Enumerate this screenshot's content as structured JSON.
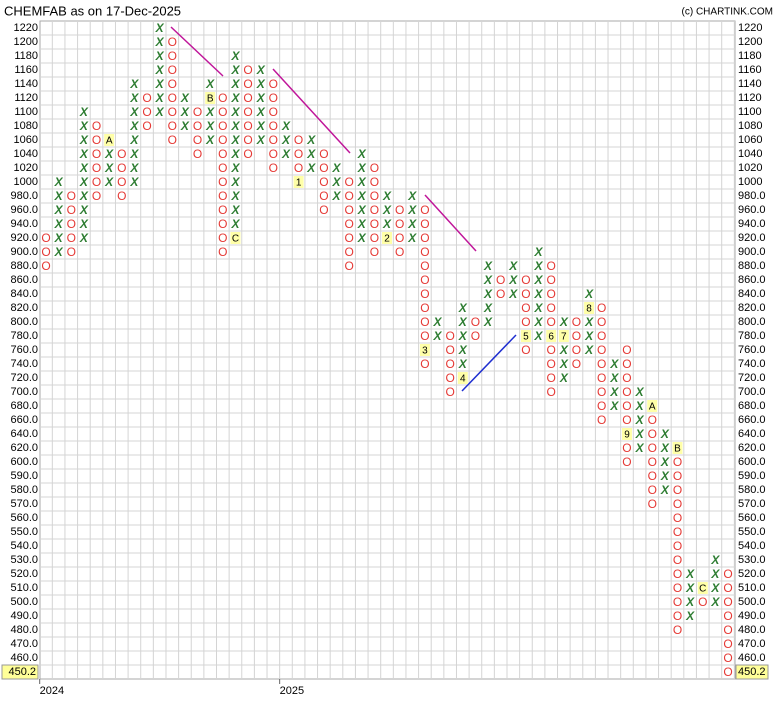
{
  "chart_data": {
    "type": "pointfigure",
    "title": "CHEMFAB as on 17-Dec-2025",
    "credit": "(c) CHARTINK.COM",
    "levels": [
      1220,
      1200,
      1180,
      1160,
      1140,
      1120,
      1100,
      1080,
      1060,
      1040,
      1020,
      1000,
      {
        "value": 980,
        "label": "980.0"
      },
      {
        "value": 960,
        "label": "960.0"
      },
      {
        "value": 940,
        "label": "940.0"
      },
      {
        "value": 920,
        "label": "920.0"
      },
      {
        "value": 900,
        "label": "900.0"
      },
      {
        "value": 880,
        "label": "880.0"
      },
      {
        "value": 860,
        "label": "860.0"
      },
      {
        "value": 840,
        "label": "840.0"
      },
      {
        "value": 820,
        "label": "820.0"
      },
      {
        "value": 800,
        "label": "800.0"
      },
      {
        "value": 780,
        "label": "780.0"
      },
      {
        "value": 760,
        "label": "760.0"
      },
      {
        "value": 740,
        "label": "740.0"
      },
      {
        "value": 720,
        "label": "720.0"
      },
      {
        "value": 700,
        "label": "700.0"
      },
      {
        "value": 680,
        "label": "680.0"
      },
      {
        "value": 660,
        "label": "660.0"
      },
      {
        "value": 640,
        "label": "640.0"
      },
      {
        "value": 620,
        "label": "620.0"
      },
      {
        "value": 600,
        "label": "600.0"
      },
      {
        "value": 590,
        "label": "590.0"
      },
      {
        "value": 580,
        "label": "580.0"
      },
      {
        "value": 570,
        "label": "570.0"
      },
      {
        "value": 560,
        "label": "560.0"
      },
      {
        "value": 550,
        "label": "550.0"
      },
      {
        "value": 540,
        "label": "540.0"
      },
      {
        "value": 530,
        "label": "530.0"
      },
      {
        "value": 520,
        "label": "520.0"
      },
      {
        "value": 510,
        "label": "510.0"
      },
      {
        "value": 500,
        "label": "500.0"
      },
      {
        "value": 490,
        "label": "490.0"
      },
      {
        "value": 480,
        "label": "480.0"
      },
      {
        "value": 470,
        "label": "470.0"
      },
      {
        "value": 460,
        "label": "460.0"
      }
    ],
    "last_price": 450.2,
    "x_color": "#2e7d32",
    "o_color": "#e53935",
    "columns": [
      {
        "kind": "O",
        "high": 920,
        "low": 880
      },
      {
        "kind": "X",
        "high": 1000,
        "low": 900
      },
      {
        "kind": "O",
        "high": 980,
        "low": 900
      },
      {
        "kind": "X",
        "high": 1100,
        "low": 920
      },
      {
        "kind": "O",
        "high": 1080,
        "low": 980
      },
      {
        "kind": "X",
        "high": 1060,
        "low": 1000
      },
      {
        "kind": "O",
        "high": 1040,
        "low": 980
      },
      {
        "kind": "X",
        "high": 1140,
        "low": 1000
      },
      {
        "kind": "O",
        "high": 1120,
        "low": 1080
      },
      {
        "kind": "X",
        "high": 1220,
        "low": 1100
      },
      {
        "kind": "O",
        "high": 1200,
        "low": 1060
      },
      {
        "kind": "X",
        "high": 1120,
        "low": 1080
      },
      {
        "kind": "O",
        "high": 1100,
        "low": 1040
      },
      {
        "kind": "X",
        "high": 1140,
        "low": 1060
      },
      {
        "kind": "O",
        "high": 1120,
        "low": 900
      },
      {
        "kind": "X",
        "high": 1180,
        "low": 920
      },
      {
        "kind": "O",
        "high": 1160,
        "low": 1040
      },
      {
        "kind": "X",
        "high": 1160,
        "low": 1060
      },
      {
        "kind": "O",
        "high": 1140,
        "low": 1020
      },
      {
        "kind": "X",
        "high": 1080,
        "low": 1040
      },
      {
        "kind": "O",
        "high": 1060,
        "low": 1000
      },
      {
        "kind": "X",
        "high": 1060,
        "low": 1020
      },
      {
        "kind": "O",
        "high": 1040,
        "low": 960
      },
      {
        "kind": "X",
        "high": 1020,
        "low": 980
      },
      {
        "kind": "O",
        "high": 1000,
        "low": 880
      },
      {
        "kind": "X",
        "high": 1040,
        "low": 920
      },
      {
        "kind": "O",
        "high": 1020,
        "low": 900
      },
      {
        "kind": "X",
        "high": 980,
        "low": 920
      },
      {
        "kind": "O",
        "high": 960,
        "low": 900
      },
      {
        "kind": "X",
        "high": 980,
        "low": 920
      },
      {
        "kind": "O",
        "high": 960,
        "low": 740
      },
      {
        "kind": "X",
        "high": 800,
        "low": 780
      },
      {
        "kind": "O",
        "high": 780,
        "low": 700
      },
      {
        "kind": "X",
        "high": 820,
        "low": 720
      },
      {
        "kind": "O",
        "high": 800,
        "low": 780
      },
      {
        "kind": "X",
        "high": 880,
        "low": 800
      },
      {
        "kind": "O",
        "high": 860,
        "low": 840
      },
      {
        "kind": "X",
        "high": 880,
        "low": 840
      },
      {
        "kind": "O",
        "high": 860,
        "low": 760
      },
      {
        "kind": "X",
        "high": 900,
        "low": 780
      },
      {
        "kind": "O",
        "high": 880,
        "low": 700
      },
      {
        "kind": "X",
        "high": 800,
        "low": 720
      },
      {
        "kind": "O",
        "high": 800,
        "low": 740
      },
      {
        "kind": "X",
        "high": 840,
        "low": 760
      },
      {
        "kind": "O",
        "high": 820,
        "low": 660
      },
      {
        "kind": "X",
        "high": 740,
        "low": 680
      },
      {
        "kind": "O",
        "high": 760,
        "low": 600
      },
      {
        "kind": "X",
        "high": 700,
        "low": 620
      },
      {
        "kind": "O",
        "high": 680,
        "low": 570
      },
      {
        "kind": "X",
        "high": 640,
        "low": 580
      },
      {
        "kind": "O",
        "high": 620,
        "low": 480
      },
      {
        "kind": "X",
        "high": 520,
        "low": 490
      },
      {
        "kind": "O",
        "high": 510,
        "low": 500
      },
      {
        "kind": "X",
        "high": 530,
        "low": 500
      },
      {
        "kind": "O",
        "high": 520,
        "low": 450.2
      }
    ],
    "markers": [
      {
        "column": 5,
        "price": 1060,
        "label": "A"
      },
      {
        "column": 13,
        "price": 1120,
        "label": "B"
      },
      {
        "column": 15,
        "price": 920,
        "label": "C"
      },
      {
        "column": 20,
        "price": 1000,
        "label": "1"
      },
      {
        "column": 27,
        "price": 920,
        "label": "2"
      },
      {
        "column": 30,
        "price": 760,
        "label": "3"
      },
      {
        "column": 33,
        "price": 720,
        "label": "4"
      },
      {
        "column": 38,
        "price": 780,
        "label": "5"
      },
      {
        "column": 40,
        "price": 780,
        "label": "6"
      },
      {
        "column": 41,
        "price": 780,
        "label": "7"
      },
      {
        "column": 43,
        "price": 820,
        "label": "8"
      },
      {
        "column": 46,
        "price": 640,
        "label": "9"
      },
      {
        "column": 48,
        "price": 680,
        "label": "A"
      },
      {
        "column": 50,
        "price": 620,
        "label": "B"
      },
      {
        "column": 52,
        "price": 510,
        "label": "C"
      }
    ],
    "year_labels": [
      {
        "column": 0,
        "label": "2024"
      },
      {
        "column": 19,
        "label": "2025"
      }
    ]
  }
}
